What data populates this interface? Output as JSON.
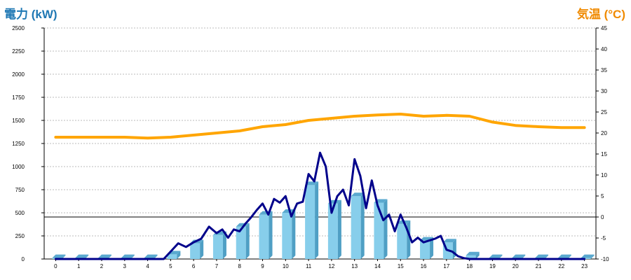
{
  "chart_data": {
    "type": "bar",
    "left_axis_title": "電力 (kW)",
    "right_axis_title": "気温 (°C)",
    "left_axis": {
      "range": [
        0,
        2500
      ],
      "ticks": [
        0,
        250,
        500,
        750,
        1000,
        1250,
        1500,
        1750,
        2000,
        2250,
        2500
      ]
    },
    "right_axis": {
      "range": [
        -10,
        45
      ],
      "ticks": [
        -10,
        -5,
        0,
        5,
        10,
        15,
        20,
        25,
        30,
        35,
        40,
        45
      ]
    },
    "categories": [
      "0",
      "1",
      "2",
      "3",
      "4",
      "5",
      "6",
      "7",
      "8",
      "9",
      "10",
      "11",
      "12",
      "13",
      "14",
      "15",
      "16",
      "17",
      "18",
      "19",
      "20",
      "21",
      "22",
      "23"
    ],
    "grid": true,
    "colors": {
      "bars": "#87ceeb",
      "power_line": "#00008b",
      "temperature_line": "#ffa500",
      "left_title": "#1f78b4",
      "right_title": "#f08a00",
      "grid": "#bbbbbb"
    },
    "series": [
      {
        "kind": "bar",
        "axis": "left",
        "values": [
          10,
          10,
          10,
          10,
          10,
          50,
          170,
          260,
          350,
          480,
          500,
          800,
          600,
          680,
          610,
          380,
          200,
          180,
          40,
          10,
          10,
          10,
          10,
          10
        ]
      },
      {
        "kind": "line",
        "axis": "left",
        "x": [
          0,
          1,
          2,
          3,
          4,
          4.7,
          5,
          5.33,
          5.67,
          6,
          6.33,
          6.67,
          7,
          7.25,
          7.5,
          7.75,
          8,
          8.25,
          8.5,
          8.75,
          9,
          9.25,
          9.5,
          9.75,
          10,
          10.25,
          10.5,
          10.75,
          11,
          11.25,
          11.5,
          11.75,
          12,
          12.25,
          12.5,
          12.75,
          13,
          13.25,
          13.5,
          13.75,
          14,
          14.25,
          14.5,
          14.75,
          15,
          15.25,
          15.5,
          15.75,
          16,
          16.25,
          16.5,
          16.75,
          17,
          17.25,
          17.5,
          17.75,
          18,
          18.5,
          19,
          20,
          21,
          22,
          23
        ],
        "values": [
          0,
          0,
          0,
          0,
          0,
          0,
          80,
          170,
          130,
          180,
          220,
          350,
          280,
          320,
          230,
          320,
          300,
          380,
          450,
          530,
          600,
          480,
          650,
          610,
          680,
          460,
          600,
          620,
          920,
          840,
          1150,
          1000,
          500,
          680,
          750,
          580,
          1080,
          900,
          550,
          850,
          580,
          420,
          480,
          300,
          480,
          340,
          180,
          230,
          180,
          200,
          220,
          250,
          100,
          80,
          30,
          10,
          0,
          0,
          0,
          0,
          0,
          0,
          0
        ]
      },
      {
        "kind": "line",
        "axis": "right",
        "x": [
          0,
          1,
          2,
          3,
          4,
          5,
          6,
          7,
          8,
          9,
          10,
          11,
          12,
          13,
          14,
          15,
          16,
          17,
          18,
          19,
          20,
          21,
          22,
          23
        ],
        "values": [
          19.0,
          19.0,
          19.0,
          19.0,
          18.8,
          19.0,
          19.5,
          20.0,
          20.5,
          21.5,
          22.0,
          23.0,
          23.5,
          24.0,
          24.3,
          24.5,
          24.0,
          24.2,
          24.0,
          22.6,
          21.8,
          21.5,
          21.3,
          21.3
        ]
      }
    ]
  }
}
